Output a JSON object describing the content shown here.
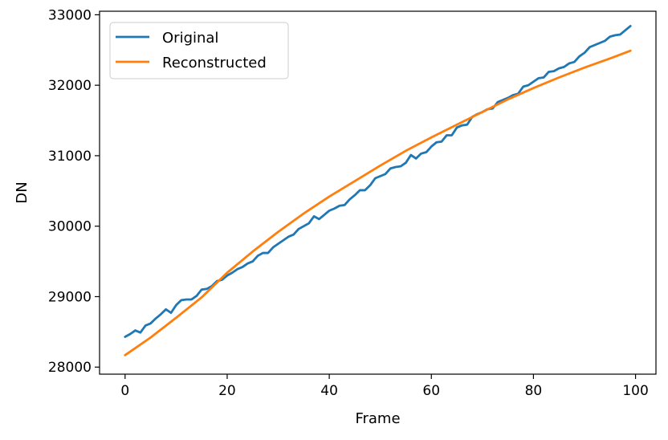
{
  "chart_data": {
    "type": "line",
    "title": "",
    "xlabel": "Frame",
    "ylabel": "DN",
    "xlim": [
      -5,
      104
    ],
    "ylim": [
      27900,
      33050
    ],
    "x_ticks": [
      0,
      20,
      40,
      60,
      80,
      100
    ],
    "y_ticks": [
      28000,
      29000,
      30000,
      31000,
      32000,
      33000
    ],
    "x_tick_labels": [
      "0",
      "20",
      "40",
      "60",
      "80",
      "100"
    ],
    "y_tick_labels": [
      "28000",
      "29000",
      "30000",
      "31000",
      "32000",
      "33000"
    ],
    "grid": false,
    "legend_position": "top-left",
    "series": [
      {
        "name": "Original",
        "color": "#1f77b4",
        "x": [
          0,
          1,
          2,
          3,
          4,
          5,
          6,
          7,
          8,
          9,
          10,
          11,
          12,
          13,
          14,
          15,
          16,
          17,
          18,
          19,
          20,
          21,
          22,
          23,
          24,
          25,
          26,
          27,
          28,
          29,
          30,
          31,
          32,
          33,
          34,
          35,
          36,
          37,
          38,
          39,
          40,
          41,
          42,
          43,
          44,
          45,
          46,
          47,
          48,
          49,
          50,
          51,
          52,
          53,
          54,
          55,
          56,
          57,
          58,
          59,
          60,
          61,
          62,
          63,
          64,
          65,
          66,
          67,
          68,
          69,
          70,
          71,
          72,
          73,
          74,
          75,
          76,
          77,
          78,
          79,
          80,
          81,
          82,
          83,
          84,
          85,
          86,
          87,
          88,
          89,
          90,
          91,
          92,
          93,
          94,
          95,
          96,
          97,
          98,
          99
        ],
        "y": [
          28430,
          28470,
          28520,
          28490,
          28590,
          28620,
          28690,
          28750,
          28820,
          28770,
          28880,
          28950,
          28960,
          28960,
          29010,
          29100,
          29110,
          29150,
          29220,
          29240,
          29300,
          29340,
          29390,
          29420,
          29470,
          29500,
          29580,
          29620,
          29620,
          29700,
          29750,
          29800,
          29850,
          29880,
          29960,
          30000,
          30040,
          30140,
          30100,
          30160,
          30220,
          30250,
          30290,
          30300,
          30380,
          30440,
          30510,
          30510,
          30580,
          30680,
          30710,
          30740,
          30820,
          30840,
          30850,
          30900,
          31010,
          30960,
          31030,
          31050,
          31130,
          31190,
          31200,
          31290,
          31290,
          31400,
          31430,
          31440,
          31550,
          31590,
          31620,
          31660,
          31670,
          31760,
          31790,
          31820,
          31860,
          31880,
          31980,
          32000,
          32050,
          32100,
          32110,
          32190,
          32200,
          32240,
          32260,
          32310,
          32330,
          32410,
          32460,
          32540,
          32570,
          32600,
          32630,
          32690,
          32710,
          32720,
          32780,
          32840
        ]
      },
      {
        "name": "Reconstructed",
        "color": "#ff7f0e",
        "x": [
          0,
          5,
          10,
          15,
          20,
          25,
          30,
          35,
          40,
          45,
          50,
          55,
          60,
          65,
          70,
          75,
          80,
          85,
          90,
          95,
          99
        ],
        "y": [
          28170,
          28420,
          28700,
          28990,
          29340,
          29640,
          29920,
          30180,
          30420,
          30640,
          30860,
          31070,
          31260,
          31440,
          31620,
          31800,
          31960,
          32110,
          32250,
          32380,
          32490
        ]
      }
    ]
  }
}
